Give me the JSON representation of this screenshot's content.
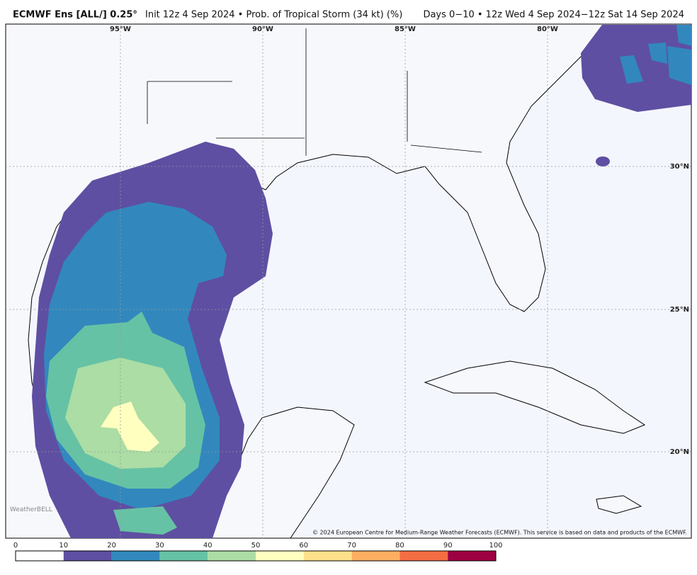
{
  "header": {
    "title_bold": "ECMWF Ens [ALL/] 0.25°",
    "title_rest": "Init 12z 4 Sep 2024 • Prob. of Tropical Storm (34 kt) (%)",
    "title_right": "Days 0−10 • 12z Wed 4 Sep 2024−12z Sat 14 Sep 2024"
  },
  "map": {
    "longitude_labels": [
      "95°W",
      "90°W",
      "85°W",
      "80°W"
    ],
    "latitude_labels": [
      "30°N",
      "25°N",
      "20°N"
    ],
    "credit": "© 2024 European Centre for Medium-Range Weather Forecasts (ECMWF). This service is based on data and products of the ECMWF.",
    "watermark": "WeatherBELL"
  },
  "colorbar": {
    "ticks": [
      0,
      10,
      20,
      30,
      40,
      50,
      60,
      70,
      80,
      90,
      100
    ],
    "colors": [
      "#ffffff",
      "#5e4fa2",
      "#3288bd",
      "#66c2a5",
      "#abdda4",
      "#ffffbf",
      "#fee08b",
      "#fdae61",
      "#f46d43",
      "#9e0142"
    ]
  }
}
